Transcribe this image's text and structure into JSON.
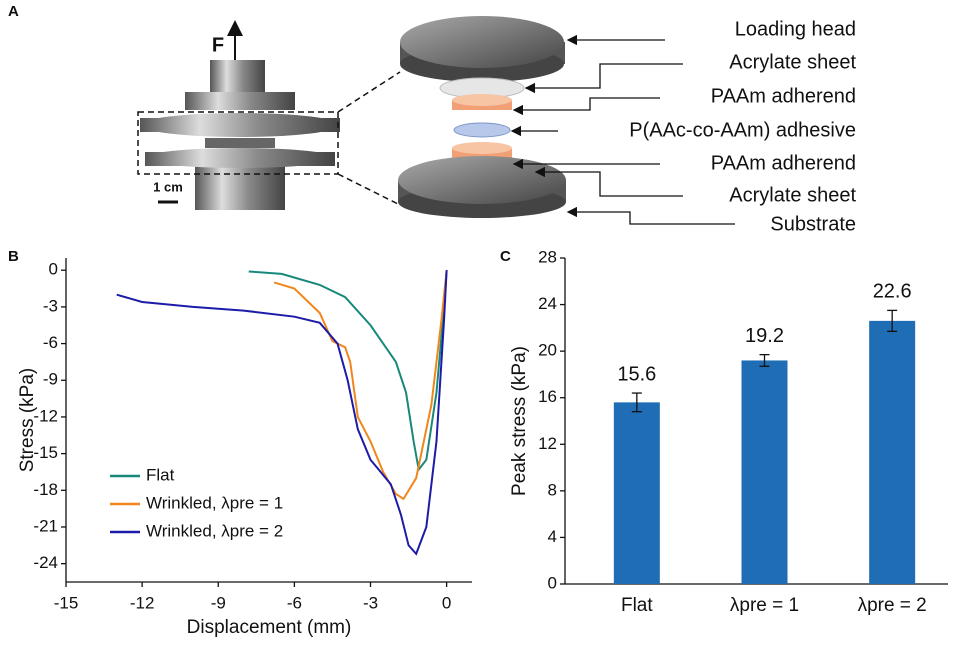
{
  "figure_a": {
    "panel": "A",
    "force_label": "F",
    "scale_label": "1 cm",
    "layers": [
      "Loading head",
      "Acrylate sheet",
      "PAAm adherend",
      "P(AAc-co-AAm) adhesive",
      "PAAm adherend",
      "Acrylate sheet",
      "Substrate"
    ]
  },
  "chart_data": [
    {
      "type": "line",
      "panel": "B",
      "x_label": "Displacement (mm)",
      "y_label": "Stress (kPa)",
      "xlim": [
        -15,
        1
      ],
      "ylim": [
        -25.5,
        1
      ],
      "xticks": [
        -15,
        -12,
        -9,
        -6,
        -3,
        0
      ],
      "yticks": [
        0,
        -3,
        -6,
        -9,
        -12,
        -15,
        -18,
        -21,
        -24
      ],
      "legend": "lower left",
      "series": [
        {
          "name": "Flat",
          "color": "#17887a",
          "x": [
            -7.8,
            -6.5,
            -5,
            -4,
            -3,
            -2,
            -1.6,
            -1.3,
            -1.1,
            -0.8,
            -0.4,
            -0.1,
            0
          ],
          "values": [
            -0.1,
            -0.3,
            -1.2,
            -2.2,
            -4.5,
            -7.5,
            -10,
            -14,
            -16.3,
            -15.5,
            -10,
            -3,
            0
          ]
        },
        {
          "name": "Wrinkled, λpre = 1",
          "color": "#f0861c",
          "x": [
            -6.8,
            -6,
            -5,
            -4.5,
            -4,
            -3.8,
            -3.5,
            -3,
            -2.5,
            -2,
            -1.7,
            -1.2,
            -0.6,
            -0.2,
            0
          ],
          "values": [
            -1,
            -1.5,
            -3.5,
            -5.8,
            -6.3,
            -7.5,
            -12,
            -14,
            -16.5,
            -18.3,
            -18.7,
            -17,
            -11,
            -4,
            0
          ]
        },
        {
          "name": "Wrinkled, λpre = 2",
          "color": "#1c1ca8",
          "x": [
            -13,
            -12,
            -10,
            -8,
            -6,
            -5,
            -4.3,
            -3.9,
            -3.5,
            -3,
            -2.2,
            -1.8,
            -1.5,
            -1.2,
            -0.8,
            -0.4,
            -0.1,
            0
          ],
          "values": [
            -2,
            -2.6,
            -3,
            -3.3,
            -3.8,
            -4.3,
            -6,
            -9,
            -13,
            -15.5,
            -17.5,
            -20,
            -22.5,
            -23.2,
            -21,
            -14,
            -4,
            0
          ]
        }
      ]
    },
    {
      "type": "bar",
      "panel": "C",
      "y_label": "Peak stress (kPa)",
      "color": "#1f6db4",
      "categories": [
        "Flat",
        "λpre = 1",
        "λpre = 2"
      ],
      "values": [
        15.6,
        19.2,
        22.6
      ],
      "errors": [
        0.8,
        0.5,
        0.9
      ],
      "ylim": [
        0,
        28
      ],
      "yticks": [
        0,
        4,
        8,
        12,
        16,
        20,
        24,
        28
      ]
    }
  ]
}
